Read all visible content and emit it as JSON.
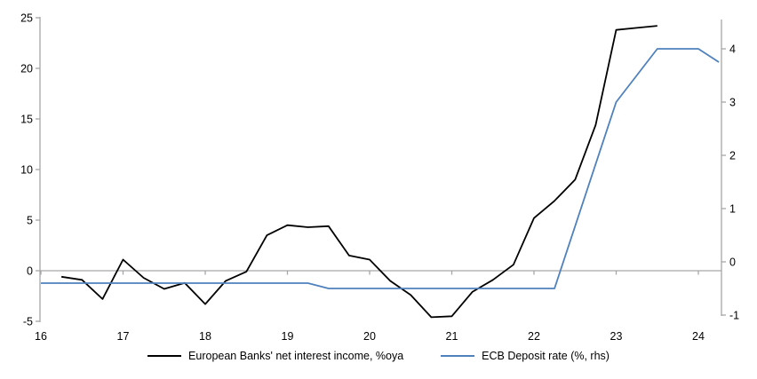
{
  "colors": {
    "background": "#ffffff",
    "axis_line": "#a6a6a6",
    "zero_line": "#a6a6a6",
    "text": "#000000",
    "series_nii": "#000000",
    "series_ecb": "#4f81bd"
  },
  "legend": {
    "nii_label": "European Banks' net interest income, %oya",
    "ecb_label": "ECB Deposit rate (%, rhs)"
  },
  "chart_data": {
    "type": "line",
    "title": "",
    "grid": "zero-line-only",
    "legend_position": "bottom",
    "x_axis": {
      "tick_labels": [
        "16",
        "17",
        "18",
        "19",
        "20",
        "21",
        "22",
        "23",
        "24"
      ],
      "tick_values": [
        16,
        17,
        18,
        19,
        20,
        21,
        22,
        23,
        24
      ],
      "range": [
        16,
        24.28
      ]
    },
    "left_axis": {
      "tick_labels": [
        "25",
        "20",
        "15",
        "10",
        "5",
        "0",
        "-5"
      ],
      "tick_values": [
        25,
        20,
        15,
        10,
        5,
        0,
        -5
      ],
      "range": [
        -5.5,
        25.3
      ],
      "label": "European Banks' net interest income, %oya"
    },
    "right_axis": {
      "tick_labels": [
        "4",
        "3",
        "2",
        "1",
        "0",
        "-1"
      ],
      "tick_values": [
        4,
        3,
        2,
        1,
        0,
        -1
      ],
      "range": [
        -1.15,
        4.6
      ],
      "label": "ECB Deposit rate (%, rhs)"
    },
    "series": [
      {
        "name": "European Banks' net interest income, %oya",
        "axis": "left",
        "color": "#000000",
        "points": [
          [
            16.25,
            -0.6
          ],
          [
            16.5,
            -0.9
          ],
          [
            16.75,
            -2.8
          ],
          [
            17.0,
            1.1
          ],
          [
            17.25,
            -0.7
          ],
          [
            17.5,
            -1.8
          ],
          [
            17.75,
            -1.2
          ],
          [
            18.0,
            -3.3
          ],
          [
            18.25,
            -1.0
          ],
          [
            18.5,
            -0.1
          ],
          [
            18.75,
            3.5
          ],
          [
            19.0,
            4.5
          ],
          [
            19.25,
            4.3
          ],
          [
            19.5,
            4.4
          ],
          [
            19.75,
            1.5
          ],
          [
            20.0,
            1.1
          ],
          [
            20.25,
            -1.0
          ],
          [
            20.5,
            -2.4
          ],
          [
            20.75,
            -4.6
          ],
          [
            21.0,
            -4.5
          ],
          [
            21.25,
            -2.1
          ],
          [
            21.5,
            -0.9
          ],
          [
            21.75,
            0.6
          ],
          [
            22.0,
            5.2
          ],
          [
            22.25,
            6.9
          ],
          [
            22.5,
            9.0
          ],
          [
            22.75,
            14.4
          ],
          [
            23.0,
            23.8
          ],
          [
            23.25,
            24.0
          ],
          [
            23.5,
            24.2
          ]
        ]
      },
      {
        "name": "ECB Deposit rate (%, rhs)",
        "axis": "right",
        "color": "#4f81bd",
        "points": [
          [
            16.0,
            -0.4
          ],
          [
            19.25,
            -0.4
          ],
          [
            19.5,
            -0.5
          ],
          [
            22.25,
            -0.5
          ],
          [
            23.0,
            3.0
          ],
          [
            23.5,
            4.0
          ],
          [
            24.0,
            4.0
          ],
          [
            24.25,
            3.75
          ]
        ]
      }
    ]
  }
}
